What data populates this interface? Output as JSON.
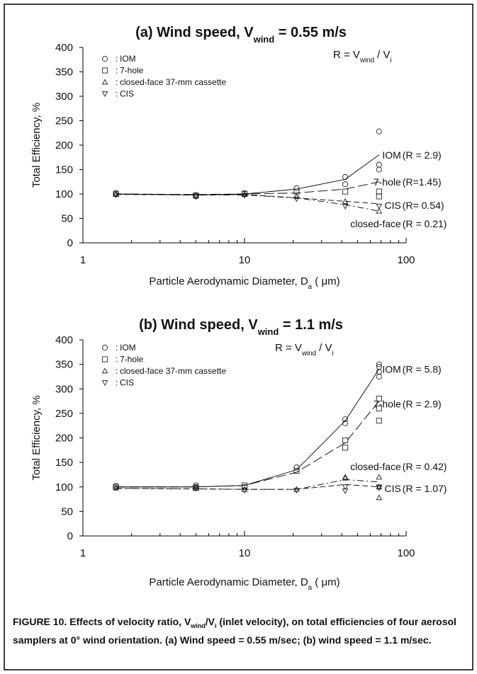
{
  "chart_data": [
    {
      "type": "scatter",
      "title_parts": [
        "(a) Wind speed, V",
        "wind",
        " = 0.55 m/s"
      ],
      "ratio_parts": [
        "R = V",
        "wind",
        " / V",
        "i"
      ],
      "xlabel_parts": [
        "Particle Aerodynamic Diameter, D",
        "a",
        " ( μm)"
      ],
      "ylabel": "Total Efficiency, %",
      "xscale": "log",
      "xlim": [
        1,
        100
      ],
      "xticks": [
        1,
        10,
        100
      ],
      "xminor": [
        2,
        3,
        4,
        5,
        6,
        7,
        8,
        9,
        20,
        30,
        40,
        50,
        60,
        70,
        80,
        90
      ],
      "ylim": [
        0,
        400
      ],
      "yticks": [
        0,
        50,
        100,
        150,
        200,
        250,
        300,
        350,
        400
      ],
      "legend_prefix": ":",
      "series": [
        {
          "name": "IOM",
          "marker": "circle",
          "color": "#000000",
          "line_style": "solid",
          "x": [
            1.6,
            5,
            10,
            21,
            42,
            42,
            68,
            68,
            68
          ],
          "values": [
            102,
            95,
            102,
            112,
            135,
            120,
            228,
            160,
            150
          ],
          "fit_x": [
            1.6,
            5,
            10,
            21,
            42,
            68
          ],
          "fit_values": [
            100,
            98,
            100,
            110,
            130,
            180
          ],
          "curve_label": "IOM",
          "r_label": "(R = 2.9)"
        },
        {
          "name": "7-hole",
          "marker": "square",
          "color": "#000000",
          "line_style": "longdash",
          "x": [
            1.6,
            5,
            10,
            21,
            42,
            68,
            68
          ],
          "values": [
            100,
            97,
            100,
            105,
            105,
            105,
            95
          ],
          "fit_x": [
            1.6,
            5,
            10,
            21,
            42,
            68
          ],
          "fit_values": [
            100,
            99,
            100,
            102,
            110,
            125
          ],
          "curve_label": "7-hole",
          "r_label": "(R=1.45)"
        },
        {
          "name": "closed-face 37-mm cassette",
          "marker": "triangle-up",
          "color": "#000000",
          "line_style": "dashdot",
          "x": [
            1.6,
            5,
            10,
            21,
            42,
            68
          ],
          "values": [
            100,
            98,
            100,
            95,
            85,
            65
          ],
          "fit_x": [
            1.6,
            5,
            10,
            21,
            42,
            68
          ],
          "fit_values": [
            100,
            98,
            98,
            92,
            78,
            65
          ],
          "curve_label": "closed-face",
          "r_label": "(R = 0.21)"
        },
        {
          "name": "CIS",
          "marker": "triangle-down",
          "color": "#000000",
          "line_style": "dashed",
          "x": [
            1.6,
            5,
            10,
            21,
            42,
            68
          ],
          "values": [
            98,
            96,
            97,
            90,
            75,
            75
          ],
          "fit_x": [
            1.6,
            5,
            10,
            21,
            42,
            68
          ],
          "fit_values": [
            99,
            98,
            99,
            92,
            85,
            80
          ],
          "curve_label": "CIS",
          "r_label": "(R= 0.54)"
        }
      ]
    },
    {
      "type": "scatter",
      "title_parts": [
        "(b) Wind speed, V",
        "wind",
        " = 1.1 m/s"
      ],
      "ratio_parts": [
        "R = V",
        "wind",
        " / V",
        "i"
      ],
      "xlabel_parts": [
        "Particle Aerodynamic Diameter, D",
        "a",
        " ( μm)"
      ],
      "ylabel": "Total Efficiency, %",
      "xscale": "log",
      "xlim": [
        1,
        100
      ],
      "xticks": [
        1,
        10,
        100
      ],
      "xminor": [
        2,
        3,
        4,
        5,
        6,
        7,
        8,
        9,
        20,
        30,
        40,
        50,
        60,
        70,
        80,
        90
      ],
      "ylim": [
        0,
        400
      ],
      "yticks": [
        0,
        50,
        100,
        150,
        200,
        250,
        300,
        350,
        400
      ],
      "legend_prefix": ":",
      "series": [
        {
          "name": "IOM",
          "marker": "circle",
          "color": "#000000",
          "line_style": "solid",
          "x": [
            1.6,
            5,
            5,
            10,
            21,
            42,
            42,
            68,
            68,
            68,
            68
          ],
          "values": [
            102,
            100,
            103,
            100,
            140,
            230,
            238,
            350,
            345,
            335,
            325
          ],
          "fit_x": [
            1.6,
            5,
            10,
            21,
            42,
            68
          ],
          "fit_values": [
            100,
            100,
            103,
            135,
            235,
            340
          ],
          "curve_label": "IOM",
          "r_label": "(R = 5.8)"
        },
        {
          "name": "7-hole",
          "marker": "square",
          "color": "#000000",
          "line_style": "longdash",
          "x": [
            1.6,
            5,
            10,
            21,
            42,
            42,
            68,
            68,
            68
          ],
          "values": [
            100,
            98,
            103,
            133,
            180,
            195,
            280,
            260,
            235
          ],
          "fit_x": [
            1.6,
            5,
            10,
            21,
            42,
            68
          ],
          "fit_values": [
            100,
            100,
            103,
            130,
            190,
            275
          ],
          "curve_label": "7-hole",
          "r_label": "(R = 2.9)"
        },
        {
          "name": "closed-face 37-mm cassette",
          "marker": "triangle-up",
          "color": "#000000",
          "line_style": "dashdot",
          "x": [
            1.6,
            5,
            10,
            21,
            42,
            42,
            68,
            68,
            68
          ],
          "values": [
            98,
            97,
            95,
            95,
            120,
            118,
            120,
            100,
            78
          ],
          "fit_x": [
            1.6,
            5,
            10,
            21,
            42,
            68
          ],
          "fit_values": [
            97,
            96,
            95,
            95,
            115,
            110
          ],
          "curve_label": "closed-face",
          "r_label": "(R = 0.42)"
        },
        {
          "name": "CIS",
          "marker": "triangle-down",
          "color": "#000000",
          "line_style": "dashed",
          "x": [
            1.6,
            5,
            10,
            21,
            42,
            42,
            68,
            68
          ],
          "values": [
            98,
            97,
            93,
            93,
            100,
            92,
            100,
            98
          ],
          "fit_x": [
            1.6,
            5,
            10,
            21,
            42,
            68
          ],
          "fit_values": [
            97,
            96,
            95,
            95,
            105,
            100
          ],
          "curve_label": "CIS",
          "r_label": "(R = 1.07)"
        }
      ]
    }
  ],
  "caption": {
    "parts": [
      {
        "text": "FIGURE 10.  Effects of velocity ratio, V"
      },
      {
        "text": "wind",
        "sub": true
      },
      {
        "text": "/V"
      },
      {
        "text": "i",
        "sub": true
      },
      {
        "text": " (inlet velocity), on total efficiencies of four aerosol samplers at 0° wind orientation. (a) Wind speed = 0.55 m/sec; (b) wind speed = 1.1 m/sec."
      }
    ]
  }
}
